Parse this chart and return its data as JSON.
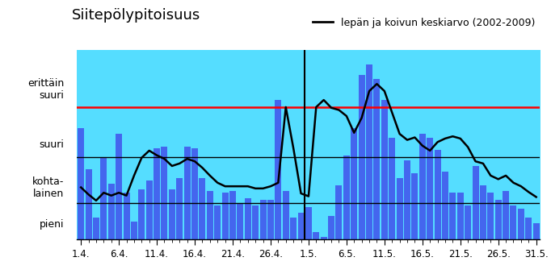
{
  "title": "Siitepölypitoisuus",
  "legend_label": "lepän ja koivun keskiarvo (2002-2009)",
  "ylim": [
    0,
    530
  ],
  "hline_black_low": 100,
  "hline_black_high": 230,
  "hline_red": 370,
  "vertical_line_x": 30.5,
  "bg_fill_color": "#55ddff",
  "bar_color": "#4466ee",
  "bar_color_light": "#88bbff",
  "ylabel_labels": [
    "erittäin\nsuuri",
    "suuri",
    "kohta-\nlainen",
    "pieni"
  ],
  "ylabel_ypos": [
    420,
    265,
    145,
    40
  ],
  "xtick_labels": [
    "1.4.",
    "6.4.",
    "11.4.",
    "16.4.",
    "21.4.",
    "26.4.",
    "1.5.",
    "6.5.",
    "11.5.",
    "16.5.",
    "21.5.",
    "26.5.",
    "31.5."
  ],
  "xtick_positions": [
    1,
    6,
    11,
    16,
    21,
    26,
    31,
    36,
    41,
    46,
    51,
    56,
    61
  ],
  "bar_heights": [
    310,
    195,
    60,
    230,
    155,
    295,
    130,
    50,
    140,
    165,
    255,
    260,
    140,
    170,
    260,
    255,
    170,
    135,
    95,
    130,
    135,
    100,
    115,
    95,
    110,
    110,
    390,
    135,
    60,
    75,
    90,
    20,
    5,
    65,
    150,
    235,
    310,
    460,
    490,
    450,
    390,
    285,
    170,
    220,
    185,
    295,
    285,
    250,
    190,
    130,
    130,
    95,
    205,
    150,
    130,
    110,
    135,
    95,
    85,
    60,
    45
  ],
  "line_values": [
    145,
    125,
    108,
    130,
    122,
    130,
    122,
    178,
    228,
    248,
    235,
    225,
    205,
    212,
    225,
    218,
    200,
    178,
    158,
    148,
    148,
    148,
    148,
    142,
    142,
    148,
    158,
    370,
    255,
    128,
    120,
    370,
    390,
    368,
    362,
    345,
    298,
    340,
    415,
    435,
    415,
    355,
    295,
    278,
    285,
    262,
    248,
    272,
    282,
    288,
    282,
    258,
    218,
    212,
    178,
    168,
    178,
    158,
    148,
    132,
    118
  ]
}
